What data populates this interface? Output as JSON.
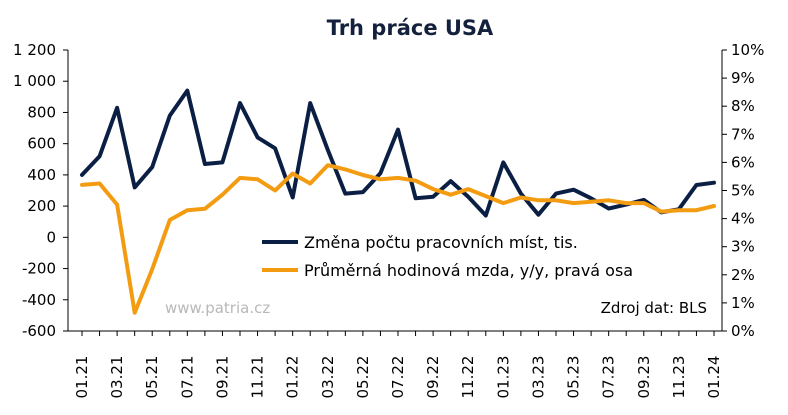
{
  "chart_data": {
    "type": "line",
    "title": "Trh práce USA",
    "source": "Zdroj dat: BLS",
    "watermark": "www.patria.cz",
    "x": [
      "01.21",
      "02.21",
      "03.21",
      "04.21",
      "05.21",
      "06.21",
      "07.21",
      "08.21",
      "09.21",
      "10.21",
      "11.21",
      "12.21",
      "01.22",
      "02.22",
      "03.22",
      "04.22",
      "05.22",
      "06.22",
      "07.22",
      "08.22",
      "09.22",
      "10.22",
      "11.22",
      "12.22",
      "01.23",
      "02.23",
      "03.23",
      "04.23",
      "05.23",
      "06.23",
      "07.23",
      "08.23",
      "09.23",
      "10.23",
      "11.23",
      "12.23",
      "01.24"
    ],
    "x_tick_labels": [
      "01.21",
      "03.21",
      "05.21",
      "07.21",
      "09.21",
      "11.21",
      "01.22",
      "03.22",
      "05.22",
      "07.22",
      "09.22",
      "11.22",
      "01.23",
      "03.23",
      "05.23",
      "07.23",
      "09.23",
      "11.23",
      "01.24"
    ],
    "y_left": {
      "min": -600,
      "max": 1200,
      "step": 200,
      "tick_labels": [
        "-600",
        "-400",
        "-200",
        "0",
        "200",
        "400",
        "600",
        "800",
        "1 000",
        "1 200"
      ]
    },
    "y_right": {
      "min": 0,
      "max": 10,
      "step": 1,
      "tick_labels": [
        "0%",
        "1%",
        "2%",
        "3%",
        "4%",
        "5%",
        "6%",
        "7%",
        "8%",
        "9%",
        "10%"
      ]
    },
    "series": [
      {
        "name": "Změna počtu pracovních míst, tis.",
        "axis": "left",
        "color": "#0b1f44",
        "values": [
          400,
          520,
          830,
          320,
          450,
          780,
          940,
          470,
          480,
          860,
          640,
          570,
          255,
          860,
          560,
          280,
          290,
          410,
          690,
          250,
          260,
          360,
          260,
          140,
          480,
          280,
          145,
          280,
          305,
          250,
          185,
          210,
          240,
          160,
          180,
          335,
          350
        ]
      },
      {
        "name": "Průměrná hodinová mzda, y/y, pravá osa",
        "axis": "right",
        "color": "#f39c12",
        "values": [
          5.2,
          5.25,
          4.5,
          0.65,
          2.2,
          3.95,
          4.3,
          4.35,
          4.85,
          5.45,
          5.4,
          5.0,
          5.6,
          5.25,
          5.9,
          5.75,
          5.55,
          5.4,
          5.45,
          5.35,
          5.05,
          4.85,
          5.05,
          4.8,
          4.55,
          4.75,
          4.65,
          4.65,
          4.55,
          4.6,
          4.65,
          4.55,
          4.55,
          4.25,
          4.3,
          4.3,
          4.45
        ]
      }
    ]
  }
}
